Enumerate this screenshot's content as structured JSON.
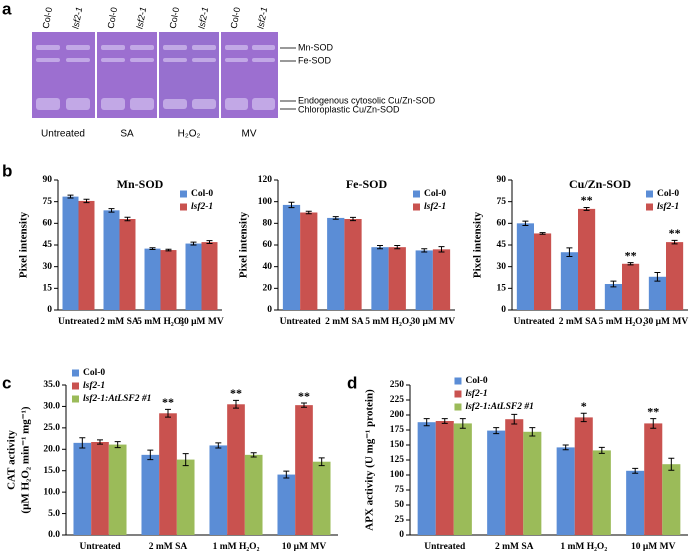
{
  "figure": {
    "panel_labels": [
      "a",
      "b",
      "c",
      "d"
    ],
    "gel": {
      "lanes": [
        "Col-0",
        "lsf2-1"
      ],
      "treatments": [
        "Untreated",
        "SA",
        "H₂O₂",
        "MV"
      ],
      "bands": [
        "Mn-SOD",
        "Fe-SOD",
        "Endogenous cytosolic Cu/Zn-SOD",
        "Chloroplastic Cu/Zn-SOD"
      ]
    }
  },
  "chart_data": [
    {
      "type": "bar",
      "title": "Mn-SOD",
      "ylabel": [
        "Pixel intensity"
      ],
      "categories": [
        "Untreated",
        "2 mM SA",
        "5 mM H₂O₂",
        "30 μM MV"
      ],
      "ylim": [
        0,
        90
      ],
      "yticks": [
        0,
        15,
        30,
        45,
        60,
        75,
        90
      ],
      "legend": "upper right",
      "series": [
        {
          "name": "Col-0",
          "color": "#5b8dd6",
          "values": [
            78.5,
            69,
            42.5,
            46
          ],
          "errors": [
            1,
            1.2,
            0.6,
            1
          ]
        },
        {
          "name": "lsf2-1",
          "color": "#c9524f",
          "values": [
            75.5,
            63,
            41.5,
            47
          ],
          "errors": [
            1.2,
            1.2,
            0.6,
            1
          ]
        }
      ]
    },
    {
      "type": "bar",
      "title": "Fe-SOD",
      "ylabel": [
        "Pixel intensity"
      ],
      "categories": [
        "Untreated",
        "2 mM SA",
        "5 mM H₂O₂",
        "30 μM MV"
      ],
      "ylim": [
        0,
        120
      ],
      "yticks": [
        0,
        20,
        40,
        60,
        80,
        100,
        120
      ],
      "legend": "upper right",
      "series": [
        {
          "name": "Col-0",
          "color": "#5b8dd6",
          "values": [
            97,
            85,
            58,
            55
          ],
          "errors": [
            2.5,
            1.2,
            1.5,
            1.5
          ]
        },
        {
          "name": "lsf2-1",
          "color": "#c9524f",
          "values": [
            90,
            84,
            58,
            56
          ],
          "errors": [
            1.2,
            1.5,
            1.5,
            2.5
          ]
        }
      ]
    },
    {
      "type": "bar",
      "title": "Cu/Zn-SOD",
      "ylabel": [
        "Pixel intensity"
      ],
      "categories": [
        "Untreated",
        "2 mM SA",
        "5 mM H₂O₂",
        "30 μM MV"
      ],
      "ylim": [
        0,
        90
      ],
      "yticks": [
        0,
        15,
        30,
        45,
        60,
        75,
        90
      ],
      "legend": "upper right",
      "series": [
        {
          "name": "Col-0",
          "color": "#5b8dd6",
          "values": [
            60,
            40,
            18,
            23
          ],
          "errors": [
            1.5,
            3,
            2,
            3
          ]
        },
        {
          "name": "lsf2-1",
          "color": "#c9524f",
          "values": [
            53,
            70,
            32,
            47
          ],
          "errors": [
            0.6,
            1,
            0.8,
            1.2
          ],
          "significance": [
            null,
            "**",
            "**",
            "**"
          ]
        }
      ]
    },
    {
      "type": "bar",
      "ylabel": [
        "CAT activity",
        "(μM H₂O₂ min⁻¹ mg⁻¹)"
      ],
      "categories": [
        "Untreated",
        "2 mM SA",
        "1 mM H₂O₂",
        "10 μM MV"
      ],
      "ylim": [
        0,
        35
      ],
      "yticks": [
        {
          "value": 0,
          "label": "0.0"
        },
        {
          "value": 5,
          "label": "5.0"
        },
        {
          "value": 10,
          "label": "10.0"
        },
        {
          "value": 15,
          "label": "15.0"
        },
        {
          "value": 20,
          "label": "20.0"
        },
        {
          "value": 25,
          "label": "25.0"
        },
        {
          "value": 30,
          "label": "30.0"
        },
        {
          "value": 35,
          "label": "35.0"
        }
      ],
      "legend": "upper left",
      "series": [
        {
          "name": "Col-0",
          "color": "#5b8dd6",
          "values": [
            21.5,
            18.7,
            20.9,
            14.1
          ],
          "errors": [
            1.2,
            1.1,
            0.6,
            0.8
          ]
        },
        {
          "name": "lsf2-1",
          "color": "#c9524f",
          "values": [
            21.7,
            28.4,
            30.5,
            30.3
          ],
          "errors": [
            0.5,
            0.9,
            0.9,
            0.5
          ],
          "significance": [
            null,
            "**",
            "**",
            "**"
          ]
        },
        {
          "name": "lsf2-1:AtLSF2 #1",
          "color": "#9bbb59",
          "values": [
            21.1,
            17.6,
            18.7,
            17.1
          ],
          "errors": [
            0.7,
            1.4,
            0.5,
            0.9
          ]
        }
      ]
    },
    {
      "type": "bar",
      "ylabel": [
        "APX activity (U mg⁻¹ protein)"
      ],
      "categories": [
        "Untreated",
        "2 mM SA",
        "1 mM H₂O₂",
        "10 μM MV"
      ],
      "ylim": [
        0,
        250
      ],
      "yticks": [
        0,
        25,
        50,
        75,
        100,
        125,
        150,
        175,
        200,
        225,
        250
      ],
      "legend": "upper center",
      "series": [
        {
          "name": "Col-0",
          "color": "#5b8dd6",
          "values": [
            188,
            174,
            146,
            107
          ],
          "errors": [
            6,
            5,
            4,
            4
          ]
        },
        {
          "name": "lsf2-1",
          "color": "#c9524f",
          "values": [
            190,
            193,
            196,
            186
          ],
          "errors": [
            4,
            8,
            7,
            8
          ],
          "significance": [
            null,
            null,
            "*",
            "**"
          ]
        },
        {
          "name": "lsf2-1:AtLSF2 #1",
          "color": "#9bbb59",
          "values": [
            186,
            172,
            141,
            118
          ],
          "errors": [
            8,
            7,
            5,
            10
          ]
        }
      ]
    }
  ]
}
